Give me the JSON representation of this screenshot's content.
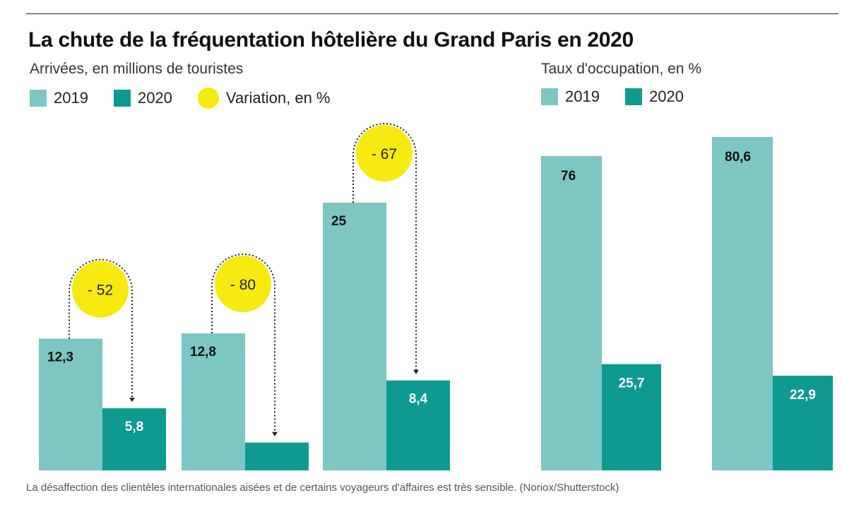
{
  "title": "La chute de la fréquentation hôtelière du Grand Paris en 2020",
  "caption": "La désaffection des clientèles internationales aisées et de certains voyageurs d'affaires est très sensible. (Noriox/Shutterstock)",
  "colors": {
    "y2019": "#7cc6c3",
    "y2020": "#0e9a90",
    "variation": "#f7ea10",
    "label_dark": "#111111",
    "label_light": "#ffffff"
  },
  "chart_data": [
    {
      "type": "bar",
      "title": "",
      "subtitle": "Arrivées, en millions de touristes",
      "legend": [
        {
          "label": "2019",
          "kind": "swatch",
          "color": "#7cc6c3"
        },
        {
          "label": "2020",
          "kind": "swatch",
          "color": "#0e9a90"
        },
        {
          "label": "Variation, en %",
          "kind": "dot",
          "color": "#f7ea10"
        }
      ],
      "legend_placement": "top-left",
      "grid": false,
      "categories": [
        "",
        "",
        ""
      ],
      "series": [
        {
          "name": "2019",
          "values": [
            12.3,
            12.8,
            25
          ],
          "labels": [
            "12,3",
            "12,8",
            "25"
          ]
        },
        {
          "name": "2020",
          "values": [
            5.8,
            2.6,
            8.4
          ],
          "labels": [
            "5,8",
            "",
            "8,4"
          ]
        }
      ],
      "variation": [
        {
          "value": -52,
          "label": "- 52"
        },
        {
          "value": -80,
          "label": "- 80"
        },
        {
          "value": -67,
          "label": "- 67"
        }
      ],
      "ylim": [
        0,
        25
      ]
    },
    {
      "type": "bar",
      "title": "",
      "subtitle": "Taux d'occupation, en %",
      "legend": [
        {
          "label": "2019",
          "kind": "swatch",
          "color": "#7cc6c3"
        },
        {
          "label": "2020",
          "kind": "swatch",
          "color": "#0e9a90"
        }
      ],
      "legend_placement": "top-left",
      "grid": false,
      "categories": [
        "",
        ""
      ],
      "series": [
        {
          "name": "2019",
          "values": [
            76,
            80.6
          ],
          "labels": [
            "76",
            "80,6"
          ]
        },
        {
          "name": "2020",
          "values": [
            25.7,
            22.9
          ],
          "labels": [
            "25,7",
            "22,9"
          ]
        }
      ],
      "ylim": [
        0,
        80.6
      ]
    }
  ]
}
